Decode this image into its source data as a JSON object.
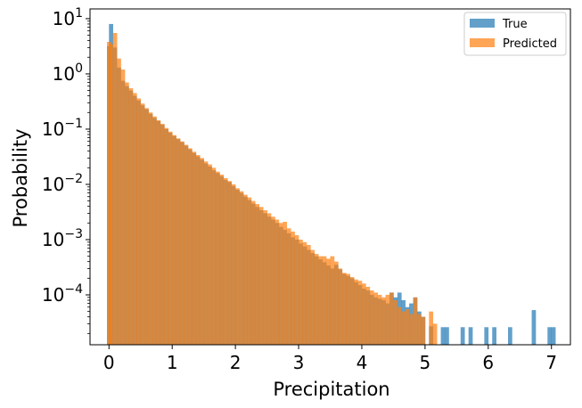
{
  "chart_data": {
    "type": "histogram",
    "title": "",
    "xlabel": "Precipitation",
    "ylabel": "Probability",
    "xlim": [
      -0.3,
      7.3
    ],
    "ylim": [
      1.25e-05,
      15
    ],
    "yscale": "log",
    "bin_width": 0.0625,
    "x_ticks": [
      0,
      1,
      2,
      3,
      4,
      5,
      6,
      7
    ],
    "y_ticks": [
      {
        "value": 10,
        "exp": "1"
      },
      {
        "value": 1,
        "exp": "0"
      },
      {
        "value": 0.1,
        "exp": "−1"
      },
      {
        "value": 0.01,
        "exp": "−2"
      },
      {
        "value": 0.001,
        "exp": "−3"
      },
      {
        "value": 0.0001,
        "exp": "−4"
      }
    ],
    "y_tick_base": "10",
    "legend": {
      "placement": "top-right",
      "entries": [
        "True",
        "Predicted"
      ]
    },
    "grid": false,
    "series": [
      {
        "name": "True",
        "color": "#1f77b4",
        "opacity": 0.7,
        "comment_free": true,
        "points": [
          [
            0.0,
            3.2
          ],
          [
            0.031,
            8.0
          ],
          [
            0.094,
            3.0
          ],
          [
            0.156,
            1.3
          ],
          [
            0.219,
            0.75
          ],
          [
            0.281,
            0.6
          ],
          [
            0.344,
            0.5
          ],
          [
            0.406,
            0.4
          ],
          [
            0.469,
            0.33
          ],
          [
            0.531,
            0.27
          ],
          [
            0.594,
            0.23
          ],
          [
            0.656,
            0.19
          ],
          [
            0.719,
            0.16
          ],
          [
            0.781,
            0.14
          ],
          [
            0.844,
            0.12
          ],
          [
            0.906,
            0.1
          ],
          [
            0.969,
            0.086
          ],
          [
            1.031,
            0.075
          ],
          [
            1.094,
            0.066
          ],
          [
            1.156,
            0.058
          ],
          [
            1.219,
            0.05
          ],
          [
            1.281,
            0.043
          ],
          [
            1.344,
            0.037
          ],
          [
            1.406,
            0.032
          ],
          [
            1.469,
            0.028
          ],
          [
            1.531,
            0.024
          ],
          [
            1.594,
            0.021
          ],
          [
            1.656,
            0.018
          ],
          [
            1.719,
            0.016
          ],
          [
            1.781,
            0.014
          ],
          [
            1.844,
            0.012
          ],
          [
            1.906,
            0.011
          ],
          [
            1.969,
            0.0093
          ],
          [
            2.031,
            0.008
          ],
          [
            2.094,
            0.007
          ],
          [
            2.156,
            0.006
          ],
          [
            2.219,
            0.0052
          ],
          [
            2.281,
            0.0045
          ],
          [
            2.344,
            0.0039
          ],
          [
            2.406,
            0.0034
          ],
          [
            2.469,
            0.003
          ],
          [
            2.531,
            0.0026
          ],
          [
            2.594,
            0.0023
          ],
          [
            2.656,
            0.002
          ],
          [
            2.719,
            0.0017
          ],
          [
            2.781,
            0.0015
          ],
          [
            2.844,
            0.0013
          ],
          [
            2.906,
            0.0011
          ],
          [
            2.969,
            0.001
          ],
          [
            3.031,
            0.00085
          ],
          [
            3.094,
            0.00075
          ],
          [
            3.156,
            0.00065
          ],
          [
            3.219,
            0.00057
          ],
          [
            3.281,
            0.0005
          ],
          [
            3.344,
            0.00044
          ],
          [
            3.406,
            0.00039
          ],
          [
            3.469,
            0.00034
          ],
          [
            3.531,
            0.0003
          ],
          [
            3.594,
            0.00035
          ],
          [
            3.656,
            0.00029
          ],
          [
            3.719,
            0.00024
          ],
          [
            3.781,
            0.00022
          ],
          [
            3.844,
            0.0002
          ],
          [
            3.906,
            0.00017
          ],
          [
            3.969,
            0.00015
          ],
          [
            4.031,
            0.00013
          ],
          [
            4.094,
            0.00012
          ],
          [
            4.156,
            0.0001
          ],
          [
            4.219,
            9e-05
          ],
          [
            4.281,
            8.5e-05
          ],
          [
            4.344,
            8e-05
          ],
          [
            4.406,
            7e-05
          ],
          [
            4.469,
            0.00011
          ],
          [
            4.531,
            9e-05
          ],
          [
            4.594,
            0.00011
          ],
          [
            4.656,
            8e-05
          ],
          [
            4.719,
            6e-05
          ],
          [
            4.781,
            7e-05
          ],
          [
            4.844,
            9e-05
          ],
          [
            4.906,
            5e-05
          ],
          [
            4.969,
            4e-05
          ],
          [
            5.094,
            2.7e-05
          ],
          [
            5.281,
            2.6e-05
          ],
          [
            5.344,
            2.6e-05
          ],
          [
            5.594,
            2.6e-05
          ],
          [
            5.719,
            2.6e-05
          ],
          [
            5.969,
            2.6e-05
          ],
          [
            6.094,
            2.6e-05
          ],
          [
            6.344,
            2.6e-05
          ],
          [
            6.719,
            5.3e-05
          ],
          [
            6.969,
            2.6e-05
          ],
          [
            7.031,
            2.6e-05
          ]
        ]
      },
      {
        "name": "Predicted",
        "color": "#ff7f0e",
        "opacity": 0.7,
        "points": [
          [
            0.0,
            3.8
          ],
          [
            0.031,
            3.4
          ],
          [
            0.094,
            5.5
          ],
          [
            0.156,
            1.9
          ],
          [
            0.219,
            1.2
          ],
          [
            0.281,
            0.7
          ],
          [
            0.344,
            0.55
          ],
          [
            0.406,
            0.45
          ],
          [
            0.469,
            0.36
          ],
          [
            0.531,
            0.29
          ],
          [
            0.594,
            0.24
          ],
          [
            0.656,
            0.2
          ],
          [
            0.719,
            0.17
          ],
          [
            0.781,
            0.145
          ],
          [
            0.844,
            0.125
          ],
          [
            0.906,
            0.105
          ],
          [
            0.969,
            0.09
          ],
          [
            1.031,
            0.078
          ],
          [
            1.094,
            0.068
          ],
          [
            1.156,
            0.06
          ],
          [
            1.219,
            0.052
          ],
          [
            1.281,
            0.045
          ],
          [
            1.344,
            0.039
          ],
          [
            1.406,
            0.034
          ],
          [
            1.469,
            0.03
          ],
          [
            1.531,
            0.026
          ],
          [
            1.594,
            0.023
          ],
          [
            1.656,
            0.02
          ],
          [
            1.719,
            0.017
          ],
          [
            1.781,
            0.015
          ],
          [
            1.844,
            0.013
          ],
          [
            1.906,
            0.0115
          ],
          [
            1.969,
            0.01
          ],
          [
            2.031,
            0.0085
          ],
          [
            2.094,
            0.0075
          ],
          [
            2.156,
            0.0065
          ],
          [
            2.219,
            0.0058
          ],
          [
            2.281,
            0.005
          ],
          [
            2.344,
            0.0044
          ],
          [
            2.406,
            0.0039
          ],
          [
            2.469,
            0.0034
          ],
          [
            2.531,
            0.003
          ],
          [
            2.594,
            0.0026
          ],
          [
            2.656,
            0.0023
          ],
          [
            2.719,
            0.002
          ],
          [
            2.781,
            0.0021
          ],
          [
            2.844,
            0.0016
          ],
          [
            2.906,
            0.0014
          ],
          [
            2.969,
            0.0012
          ],
          [
            3.031,
            0.001
          ],
          [
            3.094,
            0.0009
          ],
          [
            3.156,
            0.0008
          ],
          [
            3.219,
            0.00065
          ],
          [
            3.281,
            0.00055
          ],
          [
            3.344,
            0.0005
          ],
          [
            3.406,
            0.0005
          ],
          [
            3.469,
            0.00045
          ],
          [
            3.531,
            0.0005
          ],
          [
            3.594,
            0.0004
          ],
          [
            3.656,
            0.0003
          ],
          [
            3.719,
            0.00025
          ],
          [
            3.781,
            0.00024
          ],
          [
            3.844,
            0.00021
          ],
          [
            3.906,
            0.00019
          ],
          [
            3.969,
            0.00018
          ],
          [
            4.031,
            0.00016
          ],
          [
            4.094,
            0.00014
          ],
          [
            4.156,
            0.00012
          ],
          [
            4.219,
            0.00011
          ],
          [
            4.281,
            0.0001
          ],
          [
            4.344,
            9e-05
          ],
          [
            4.406,
            0.0001
          ],
          [
            4.469,
            0.00011
          ],
          [
            4.531,
            8e-05
          ],
          [
            4.594,
            6e-05
          ],
          [
            4.656,
            5e-05
          ],
          [
            4.719,
            5.5e-05
          ],
          [
            4.781,
            4.5e-05
          ],
          [
            4.844,
            9e-05
          ],
          [
            4.906,
            4.5e-05
          ],
          [
            4.969,
            4e-05
          ],
          [
            5.094,
            5e-05
          ],
          [
            5.156,
            3e-05
          ]
        ]
      }
    ]
  }
}
